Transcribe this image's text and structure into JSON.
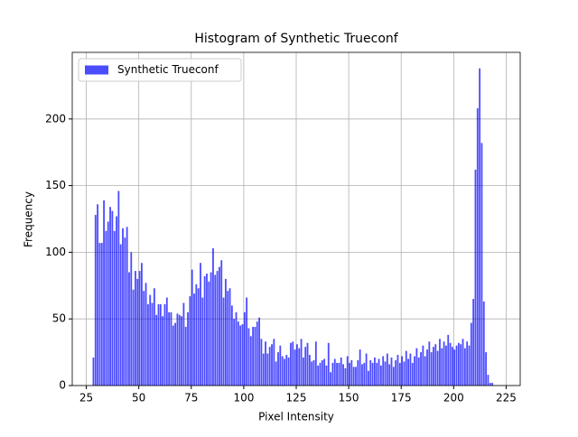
{
  "chart_data": {
    "type": "histogram",
    "title": "Histogram of Synthetic Trueconf",
    "x_label": "Pixel Intensity",
    "y_label": "Frequency",
    "series": [
      {
        "name": "Synthetic Trueconf",
        "color": "#0000ff",
        "alpha": 0.7,
        "bins": [
          28,
          29,
          30,
          31,
          32,
          33,
          34,
          35,
          36,
          37,
          38,
          39,
          40,
          41,
          42,
          43,
          44,
          45,
          46,
          47,
          48,
          49,
          50,
          51,
          52,
          53,
          54,
          55,
          56,
          57,
          58,
          59,
          60,
          61,
          62,
          63,
          64,
          65,
          66,
          67,
          68,
          69,
          70,
          71,
          72,
          73,
          74,
          75,
          76,
          77,
          78,
          79,
          80,
          81,
          82,
          83,
          84,
          85,
          86,
          87,
          88,
          89,
          90,
          91,
          92,
          93,
          94,
          95,
          96,
          97,
          98,
          99,
          100,
          101,
          102,
          103,
          104,
          105,
          106,
          107,
          108,
          109,
          110,
          111,
          112,
          113,
          114,
          115,
          116,
          117,
          118,
          119,
          120,
          121,
          122,
          123,
          124,
          125,
          126,
          127,
          128,
          129,
          130,
          131,
          132,
          133,
          134,
          135,
          136,
          137,
          138,
          139,
          140,
          141,
          142,
          143,
          144,
          145,
          146,
          147,
          148,
          149,
          150,
          151,
          152,
          153,
          154,
          155,
          156,
          157,
          158,
          159,
          160,
          161,
          162,
          163,
          164,
          165,
          166,
          167,
          168,
          169,
          170,
          171,
          172,
          173,
          174,
          175,
          176,
          177,
          178,
          179,
          180,
          181,
          182,
          183,
          184,
          185,
          186,
          187,
          188,
          189,
          190,
          191,
          192,
          193,
          194,
          195,
          196,
          197,
          198,
          199,
          200,
          201,
          202,
          203,
          204,
          205,
          206,
          207,
          208,
          209,
          210,
          211,
          212,
          213,
          214,
          215,
          216,
          217,
          218,
          219
        ],
        "values": [
          21,
          128,
          136,
          107,
          107,
          139,
          116,
          123,
          134,
          131,
          116,
          127,
          146,
          106,
          118,
          111,
          119,
          85,
          100,
          72,
          86,
          80,
          86,
          92,
          71,
          77,
          61,
          68,
          62,
          73,
          53,
          61,
          61,
          52,
          61,
          66,
          55,
          55,
          45,
          47,
          54,
          53,
          52,
          62,
          44,
          55,
          67,
          87,
          69,
          76,
          73,
          92,
          66,
          82,
          84,
          78,
          85,
          103,
          83,
          86,
          89,
          94,
          66,
          80,
          71,
          73,
          60,
          50,
          55,
          48,
          45,
          46,
          55,
          66,
          43,
          37,
          44,
          44,
          48,
          51,
          35,
          24,
          33,
          24,
          29,
          31,
          35,
          18,
          25,
          30,
          22,
          20,
          23,
          21,
          32,
          33,
          27,
          31,
          28,
          35,
          21,
          29,
          32,
          23,
          18,
          19,
          33,
          15,
          17,
          19,
          20,
          15,
          32,
          10,
          17,
          20,
          17,
          17,
          21,
          16,
          13,
          22,
          17,
          19,
          14,
          14,
          19,
          27,
          16,
          17,
          24,
          11,
          19,
          17,
          21,
          17,
          20,
          15,
          22,
          18,
          24,
          16,
          21,
          14,
          19,
          23,
          17,
          22,
          18,
          26,
          20,
          24,
          17,
          22,
          28,
          21,
          25,
          30,
          22,
          27,
          33,
          25,
          29,
          31,
          26,
          35,
          28,
          33,
          30,
          38,
          32,
          29,
          27,
          30,
          32,
          31,
          35,
          28,
          33,
          30,
          47,
          65,
          162,
          208,
          238,
          182,
          63,
          25,
          8,
          2,
          2
        ]
      }
    ],
    "xlim": [
      18.3,
      231.7
    ],
    "xticks": [
      25,
      50,
      75,
      100,
      125,
      150,
      175,
      200,
      225
    ],
    "ylim": [
      0,
      250
    ],
    "yticks": [
      0,
      50,
      100,
      150,
      200
    ],
    "grid": true,
    "legend": "upper left"
  }
}
